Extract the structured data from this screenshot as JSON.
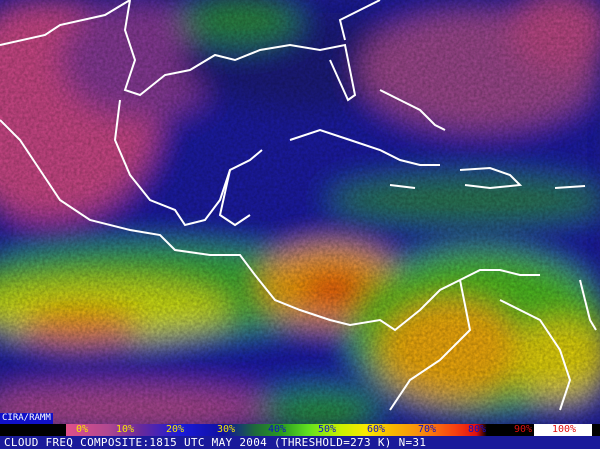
{
  "credit": "CIRA/RAMM",
  "legend": {
    "labels": [
      {
        "text": "0%",
        "color": "#f8e800"
      },
      {
        "text": "10%",
        "color": "#f8e800"
      },
      {
        "text": "20%",
        "color": "#f8e800"
      },
      {
        "text": "30%",
        "color": "#f8e800"
      },
      {
        "text": "40%",
        "color": "#1010c8"
      },
      {
        "text": "50%",
        "color": "#1010c8"
      },
      {
        "text": "60%",
        "color": "#1010c8"
      },
      {
        "text": "70%",
        "color": "#1010c8"
      },
      {
        "text": "80%",
        "color": "#1010c8"
      },
      {
        "text": "90%",
        "color": "#e01010"
      },
      {
        "text": "100%",
        "color": "#e01010"
      }
    ]
  },
  "caption": "CLOUD FREQ COMPOSITE:1815 UTC MAY 2004 (THRESHOLD=273 K) N=31"
}
